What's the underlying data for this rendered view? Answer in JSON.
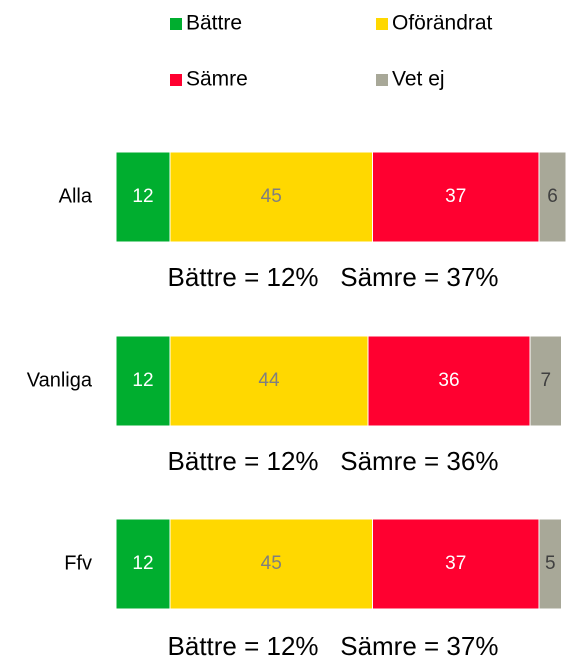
{
  "chart_data": {
    "type": "stacked_bar_horizontal",
    "categories": [
      "Alla",
      "Vanliga",
      "Ffv"
    ],
    "series": [
      {
        "name": "Bättre",
        "color": "#00ae2f",
        "label_color": "#ffffff",
        "values": [
          12,
          12,
          12
        ]
      },
      {
        "name": "Oförändrat",
        "color": "#ffd800",
        "label_color": "#7f7f7f",
        "values": [
          45,
          44,
          45
        ]
      },
      {
        "name": "Sämre",
        "color": "#ff0030",
        "label_color": "#ffffff",
        "values": [
          37,
          36,
          37
        ]
      },
      {
        "name": "Vet ej",
        "color": "#a8a898",
        "label_color": "#404040",
        "values": [
          6,
          7,
          5
        ]
      }
    ],
    "annotations": [
      "Bättre = 12%   Sämre = 37%",
      "Bättre = 12%   Sämre = 36%",
      "Bättre = 12%   Sämre = 37%"
    ],
    "xlim": [
      0,
      100
    ]
  }
}
